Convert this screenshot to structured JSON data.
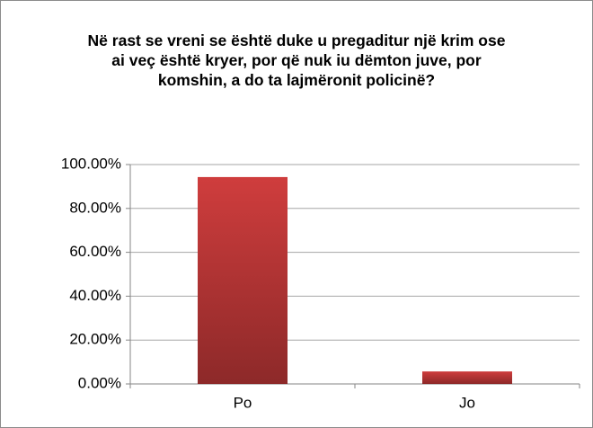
{
  "chart_data": {
    "type": "bar",
    "title": "Në rast se vreni se është duke u pregaditur një krim ose ai veç është kryer, por që nuk iu dëmton juve, por komshin, a do ta lajmëronit policinë?",
    "categories": [
      "Po",
      "Jo"
    ],
    "values": [
      94.3,
      5.7
    ],
    "color": "#cf3d3d",
    "ylim": [
      0,
      100
    ],
    "yticks": [
      {
        "value": 0,
        "label": "0.00%"
      },
      {
        "value": 20,
        "label": "20.00%"
      },
      {
        "value": 40,
        "label": "40.00%"
      },
      {
        "value": 60,
        "label": "60.00%"
      },
      {
        "value": 80,
        "label": "80.00%"
      },
      {
        "value": 100,
        "label": "100.00%"
      }
    ],
    "grid": true
  }
}
